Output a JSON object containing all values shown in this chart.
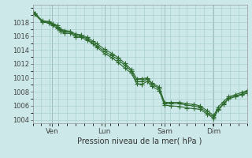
{
  "background_color": "#cce8e8",
  "grid_color": "#aad0d0",
  "line_color": "#2d6a2d",
  "marker_color": "#2d6a2d",
  "xlabel": "Pression niveau de la mer( hPa )",
  "ylim": [
    1003.5,
    1020.5
  ],
  "yticks": [
    1004,
    1006,
    1008,
    1010,
    1012,
    1014,
    1016,
    1018
  ],
  "xlim": [
    0,
    1
  ],
  "day_labels": [
    "Ven",
    "Lun",
    "Sam",
    "Dim"
  ],
  "day_positions": [
    0.09,
    0.335,
    0.615,
    0.845
  ],
  "vline_positions": [
    0.09,
    0.335,
    0.615,
    0.845,
    1.0
  ],
  "line1_x": [
    0.0,
    0.01,
    0.045,
    0.075,
    0.095,
    0.115,
    0.13,
    0.15,
    0.175,
    0.2,
    0.225,
    0.255,
    0.28,
    0.3,
    0.335,
    0.37,
    0.4,
    0.43,
    0.46,
    0.485,
    0.51,
    0.535,
    0.555,
    0.59,
    0.615,
    0.645,
    0.685,
    0.72,
    0.75,
    0.78,
    0.815,
    0.845,
    0.865,
    0.89,
    0.915,
    0.945,
    0.975,
    1.0
  ],
  "line1_y": [
    1019.4,
    1019.2,
    1018.1,
    1018.0,
    1017.7,
    1017.3,
    1016.9,
    1016.6,
    1016.6,
    1016.1,
    1016.0,
    1015.6,
    1015.0,
    1014.6,
    1013.8,
    1013.2,
    1012.6,
    1011.8,
    1011.0,
    1009.5,
    1009.5,
    1009.8,
    1009.1,
    1008.5,
    1006.3,
    1006.3,
    1006.3,
    1006.1,
    1006.0,
    1005.8,
    1005.0,
    1004.4,
    1005.5,
    1006.3,
    1007.1,
    1007.4,
    1007.7,
    1008.0
  ],
  "line2_x": [
    0.0,
    0.01,
    0.045,
    0.075,
    0.095,
    0.115,
    0.13,
    0.15,
    0.175,
    0.2,
    0.225,
    0.255,
    0.28,
    0.3,
    0.335,
    0.37,
    0.4,
    0.43,
    0.46,
    0.485,
    0.51,
    0.535,
    0.555,
    0.59,
    0.615,
    0.645,
    0.685,
    0.72,
    0.75,
    0.78,
    0.815,
    0.845,
    0.865,
    0.89,
    0.915,
    0.945,
    0.975,
    1.0
  ],
  "line2_y": [
    1019.5,
    1019.3,
    1018.2,
    1018.1,
    1017.8,
    1017.5,
    1017.0,
    1016.8,
    1016.7,
    1016.3,
    1016.2,
    1015.8,
    1015.3,
    1014.9,
    1014.1,
    1013.5,
    1012.9,
    1012.1,
    1011.2,
    1009.9,
    1009.9,
    1010.0,
    1009.3,
    1008.7,
    1006.5,
    1006.5,
    1006.5,
    1006.3,
    1006.2,
    1006.0,
    1005.3,
    1004.6,
    1005.8,
    1006.6,
    1007.3,
    1007.6,
    1007.9,
    1008.2
  ],
  "line3_x": [
    0.0,
    0.01,
    0.045,
    0.075,
    0.095,
    0.115,
    0.13,
    0.15,
    0.175,
    0.2,
    0.225,
    0.255,
    0.28,
    0.3,
    0.335,
    0.37,
    0.4,
    0.43,
    0.46,
    0.485,
    0.51,
    0.535,
    0.555,
    0.59,
    0.615,
    0.645,
    0.685,
    0.72,
    0.75,
    0.78,
    0.815,
    0.845,
    0.865,
    0.89,
    0.915,
    0.945,
    0.975,
    1.0
  ],
  "line3_y": [
    1019.3,
    1019.1,
    1018.0,
    1017.9,
    1017.5,
    1017.1,
    1016.7,
    1016.4,
    1016.4,
    1015.9,
    1015.8,
    1015.4,
    1014.9,
    1014.4,
    1013.5,
    1012.9,
    1012.2,
    1011.4,
    1010.7,
    1009.2,
    1009.1,
    1009.5,
    1008.8,
    1008.2,
    1006.1,
    1006.0,
    1005.9,
    1005.7,
    1005.6,
    1005.5,
    1004.8,
    1004.2,
    1005.4,
    1006.2,
    1007.0,
    1007.3,
    1007.6,
    1007.8
  ]
}
